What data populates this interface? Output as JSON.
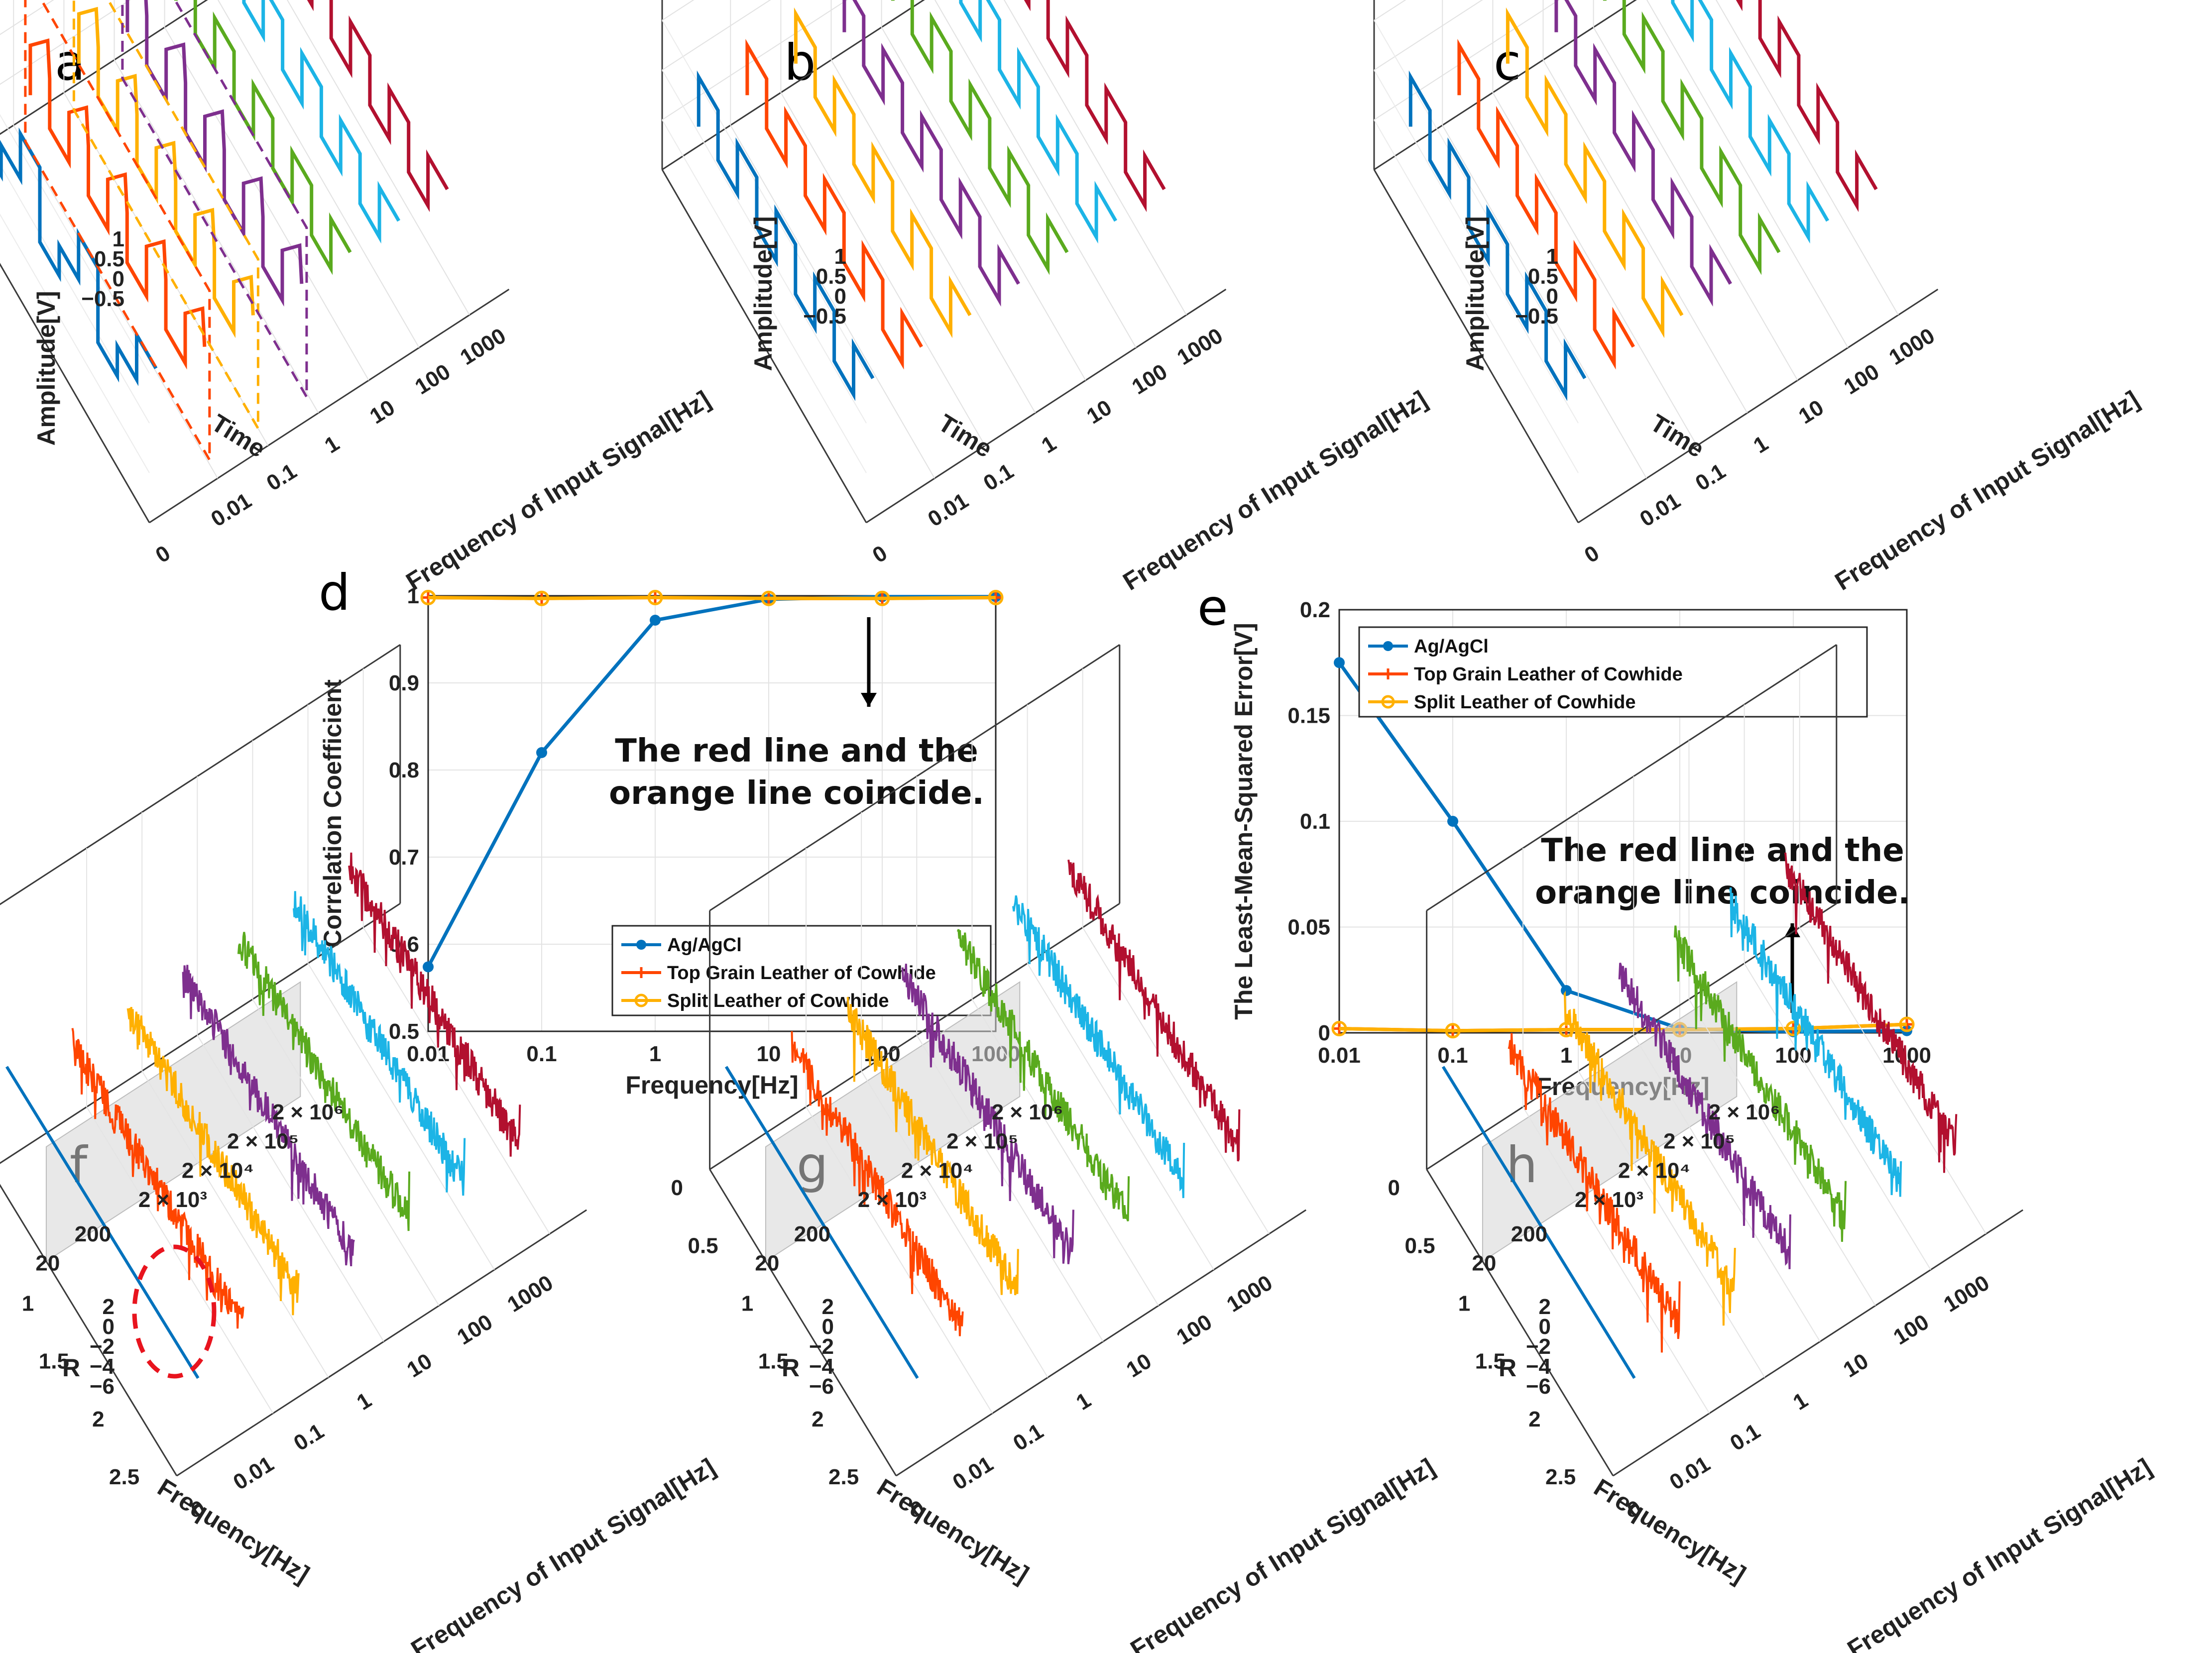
{
  "panels": {
    "a": "a",
    "b": "b",
    "c": "c",
    "d": "d",
    "e": "e",
    "f": "f",
    "g": "g",
    "h": "h"
  },
  "top_3d": {
    "amplitude_label": "Amplitude[V]",
    "time_label": "Time",
    "freq_label": "Frequency of Input Signal[Hz]",
    "amp_ticks": [
      "1",
      "0.5",
      "0",
      "−0.5"
    ],
    "freq_ticks": [
      "0",
      "0.01",
      "0.1",
      "1",
      "10",
      "100",
      "1000"
    ]
  },
  "bottom_3d": {
    "r_label": "R",
    "freq_axis_label": "Frequency[Hz]",
    "signal_label": "Frequency of Input Signal[Hz]",
    "r_ticks": [
      "2",
      "0",
      "−2",
      "−4",
      "−6"
    ],
    "f_ticks": [
      "0",
      "0.5",
      "1",
      "1.5",
      "2",
      "2.5"
    ],
    "sig_ticks": [
      "0",
      "0.01",
      "0.1",
      "1",
      "10",
      "100",
      "1000"
    ],
    "shade_ticks": [
      "20",
      "200",
      "2 × 10³",
      "2 × 10⁴",
      "2 × 10⁵",
      "2 × 10⁶"
    ]
  },
  "colors": {
    "blue": "#0072BD",
    "red": "#FF4500",
    "orange": "#FFB000",
    "purple": "#7E2F8E",
    "green": "#5AAA1E",
    "cyan": "#1CB4E6",
    "crimson": "#B2102F"
  },
  "chart_data": [
    {
      "panel": "d",
      "type": "line",
      "title": "",
      "xlabel": "Frequency[Hz]",
      "ylabel": "Correlation Coefficient",
      "xscale": "log",
      "xlim": [
        0.01,
        1000
      ],
      "ylim": [
        0.5,
        1
      ],
      "x_ticks": [
        "0.01",
        "0.1",
        "1",
        "10",
        "100",
        "1000"
      ],
      "y_ticks": [
        "0.5",
        "0.6",
        "0.7",
        "0.8",
        "0.9",
        "1"
      ],
      "x": [
        0.01,
        0.1,
        1,
        10,
        100,
        1000
      ],
      "grid": true,
      "legend_position": "bottom-right",
      "series": [
        {
          "name": "Ag/AgCl",
          "color": "#0072BD",
          "marker": "dot",
          "values": [
            0.574,
            0.82,
            0.972,
            0.996,
            0.999,
            0.999
          ]
        },
        {
          "name": "Top Grain Leather of Cowhide",
          "color": "#FF4500",
          "marker": "plus",
          "values": [
            0.998,
            0.997,
            0.998,
            0.997,
            0.997,
            0.998
          ]
        },
        {
          "name": "Split Leather of Cowhide",
          "color": "#FFB000",
          "marker": "circle",
          "values": [
            0.998,
            0.997,
            0.998,
            0.997,
            0.997,
            0.998
          ]
        }
      ],
      "annotation": [
        "The red line and the",
        "orange line coincide."
      ]
    },
    {
      "panel": "e",
      "type": "line",
      "title": "",
      "xlabel": "Frequency[Hz]",
      "ylabel": "The Least-Mean-Squared Error[V]",
      "xscale": "log",
      "xlim": [
        0.01,
        1000
      ],
      "ylim": [
        0,
        0.2
      ],
      "x_ticks": [
        "0.01",
        "0.1",
        "1",
        "10",
        "100",
        "1000"
      ],
      "y_ticks": [
        "0",
        "0.05",
        "0.1",
        "0.15",
        "0.2"
      ],
      "x": [
        0.01,
        0.1,
        1,
        10,
        100,
        1000
      ],
      "grid": true,
      "legend_position": "top-left",
      "series": [
        {
          "name": "Ag/AgCl",
          "color": "#0072BD",
          "marker": "dot",
          "values": [
            0.175,
            0.1,
            0.02,
            0.002,
            0.0005,
            0.001
          ]
        },
        {
          "name": "Top Grain Leather of Cowhide",
          "color": "#FF4500",
          "marker": "plus",
          "values": [
            0.002,
            0.001,
            0.0015,
            0.0015,
            0.002,
            0.004
          ]
        },
        {
          "name": "Split Leather of Cowhide",
          "color": "#FFB000",
          "marker": "circle",
          "values": [
            0.002,
            0.001,
            0.0015,
            0.0015,
            0.002,
            0.004
          ]
        }
      ],
      "annotation": [
        "The red line and the",
        "orange line coincide."
      ]
    }
  ]
}
